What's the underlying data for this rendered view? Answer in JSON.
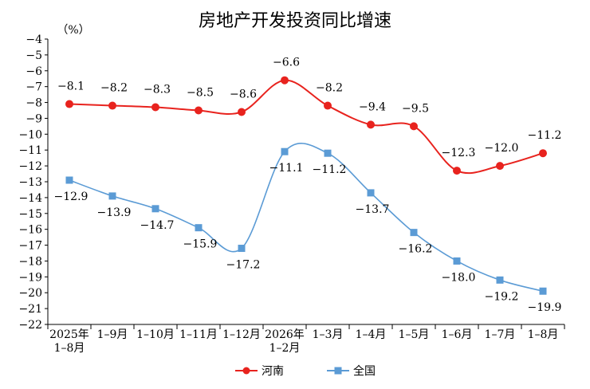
{
  "chart_data": {
    "type": "line",
    "title": "房地产开发投资同比增速",
    "ylabel": "（%）",
    "xlabel": "",
    "ylim": [
      -22,
      -4
    ],
    "yticks": [
      -4,
      -5,
      -6,
      -7,
      -8,
      -9,
      -10,
      -11,
      -12,
      -13,
      -14,
      -15,
      -16,
      -17,
      -18,
      -19,
      -20,
      -21,
      -22
    ],
    "categories": [
      [
        "2025年",
        "1–8月"
      ],
      [
        "1–9月"
      ],
      [
        "1–10月"
      ],
      [
        "1–11月"
      ],
      [
        "1–12月"
      ],
      [
        "2026年",
        "1–2月"
      ],
      [
        "1–3月"
      ],
      [
        "1–4月"
      ],
      [
        "1–5月"
      ],
      [
        "1–6月"
      ],
      [
        "1–7月"
      ],
      [
        "1–8月"
      ]
    ],
    "series": [
      {
        "name": "河南",
        "color": "#e8231e",
        "marker": "circle",
        "values": [
          -8.1,
          -8.2,
          -8.3,
          -8.5,
          -8.6,
          -6.6,
          -8.2,
          -9.4,
          -9.5,
          -12.3,
          -12.0,
          -11.2
        ],
        "labels": [
          "-8.1",
          "-8.2",
          "-8.3",
          "-8.5",
          "-8.6",
          "-6.6",
          "-8.2",
          "-9.4",
          "-9.5",
          "-12.3",
          "-12.0",
          "-11.2"
        ]
      },
      {
        "name": "全国",
        "color": "#5b9bd5",
        "marker": "square",
        "values": [
          -12.9,
          -13.9,
          -14.7,
          -15.9,
          -17.2,
          -11.1,
          -11.2,
          -13.7,
          -16.2,
          -18.0,
          -19.2,
          -19.9
        ],
        "labels": [
          "-12.9",
          "-13.9",
          "-14.7",
          "-15.9",
          "-17.2",
          "-11.1",
          "-11.2",
          "-13.7",
          "-16.2",
          "-18.0",
          "-19.2",
          "-19.9"
        ]
      }
    ],
    "legend_position": "bottom",
    "grid": false
  }
}
